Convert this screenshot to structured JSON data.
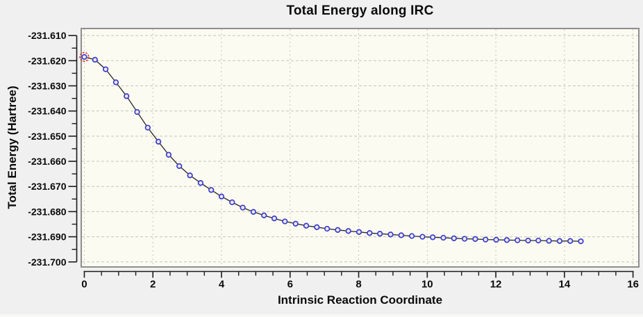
{
  "window": {
    "background_color": "#f0f0f0"
  },
  "chart_data": {
    "type": "line",
    "title": "Total Energy along IRC",
    "xlabel": "Intrinsic Reaction Coordinate",
    "ylabel": "Total Energy (Hartree)",
    "xlim": [
      -0.09,
      16.17
    ],
    "ylim": [
      -231.702,
      -231.6072
    ],
    "x_major_ticks": [
      0,
      2,
      4,
      6,
      8,
      10,
      12,
      14,
      16
    ],
    "x_tick_labels": [
      "0",
      "2",
      "4",
      "6",
      "8",
      "10",
      "12",
      "14",
      "16"
    ],
    "x_minor_tick_step": 0.5,
    "y_major_ticks": [
      -231.61,
      -231.62,
      -231.63,
      -231.64,
      -231.65,
      -231.66,
      -231.67,
      -231.68,
      -231.69,
      -231.7
    ],
    "y_tick_labels": [
      "-231.610",
      "-231.620",
      "-231.630",
      "-231.640",
      "-231.650",
      "-231.660",
      "-231.670",
      "-231.680",
      "-231.690",
      "-231.700"
    ],
    "y_minor_tick_step": 0.005,
    "grid": "dashed, major ticks only",
    "legend_position": "none",
    "selected_point_index": 0,
    "series": [
      {
        "name": "Total Energy",
        "marker": "open-circle",
        "x": [
          0.0,
          0.31,
          0.62,
          0.92,
          1.23,
          1.54,
          1.85,
          2.16,
          2.46,
          2.77,
          3.08,
          3.39,
          3.7,
          4.0,
          4.31,
          4.62,
          4.93,
          5.24,
          5.54,
          5.85,
          6.16,
          6.47,
          6.78,
          7.08,
          7.39,
          7.7,
          8.01,
          8.32,
          8.62,
          8.93,
          9.24,
          9.55,
          9.86,
          10.16,
          10.47,
          10.78,
          11.09,
          11.4,
          11.7,
          12.01,
          12.32,
          12.63,
          12.94,
          13.24,
          13.55,
          13.86,
          14.17,
          14.48
        ],
        "y": [
          -231.6185,
          -231.6196,
          -231.6234,
          -231.6286,
          -231.6341,
          -231.6404,
          -231.6466,
          -231.6522,
          -231.6574,
          -231.6619,
          -231.6656,
          -231.6686,
          -231.6714,
          -231.674,
          -231.6763,
          -231.6784,
          -231.6801,
          -231.6815,
          -231.6827,
          -231.6839,
          -231.6848,
          -231.6856,
          -231.6862,
          -231.6868,
          -231.6873,
          -231.6877,
          -231.6881,
          -231.6885,
          -231.6888,
          -231.6891,
          -231.6894,
          -231.6897,
          -231.69,
          -231.6902,
          -231.6904,
          -231.6906,
          -231.6908,
          -231.6909,
          -231.6911,
          -231.6912,
          -231.6913,
          -231.6914,
          -231.6915,
          -231.6915,
          -231.6916,
          -231.6917,
          -231.6917,
          -231.6918
        ]
      }
    ],
    "colors": {
      "plot_background": "#fbfbf1",
      "outer_background": "#f0f0f0",
      "plot_border": "#8e8e8e",
      "gridline": "#c4c4ba",
      "axis_line": "#1a1a1a",
      "series_line": "#262626",
      "marker_stroke": "#3c3cc8",
      "marker_fill": "#e9e9f8",
      "selection_highlight": "#e42323",
      "text": "#0a0a0a"
    }
  }
}
